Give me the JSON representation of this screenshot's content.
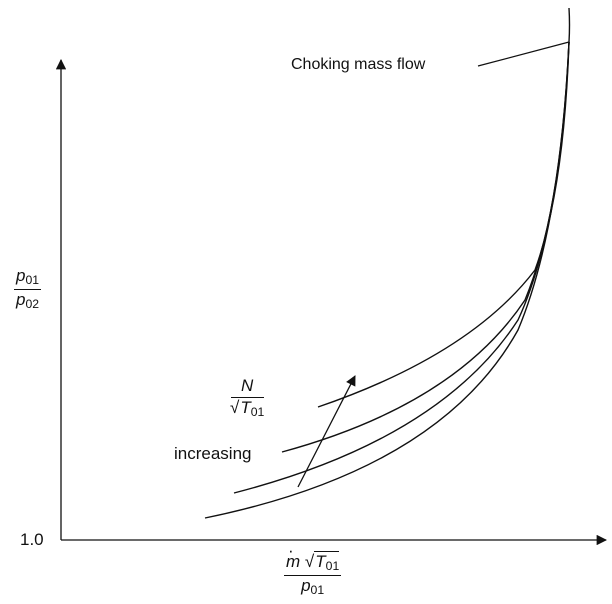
{
  "y_axis": {
    "label_numerator": "p",
    "label_numerator_sub": "01",
    "label_denominator": "p",
    "label_denominator_sub": "02",
    "tick_label": "1.0"
  },
  "x_axis": {
    "label_mdot": "m",
    "label_T": "T",
    "label_T_sub": "01",
    "label_denominator": "p",
    "label_denominator_sub": "01",
    "sqrt_symbol": "√"
  },
  "choking_label": "Choking mass flow",
  "speed_label": {
    "numerator": "N",
    "sqrt_symbol": "√",
    "denominator": "T",
    "denominator_sub": "01",
    "direction": "increasing"
  },
  "curves": {
    "count": 4
  }
}
